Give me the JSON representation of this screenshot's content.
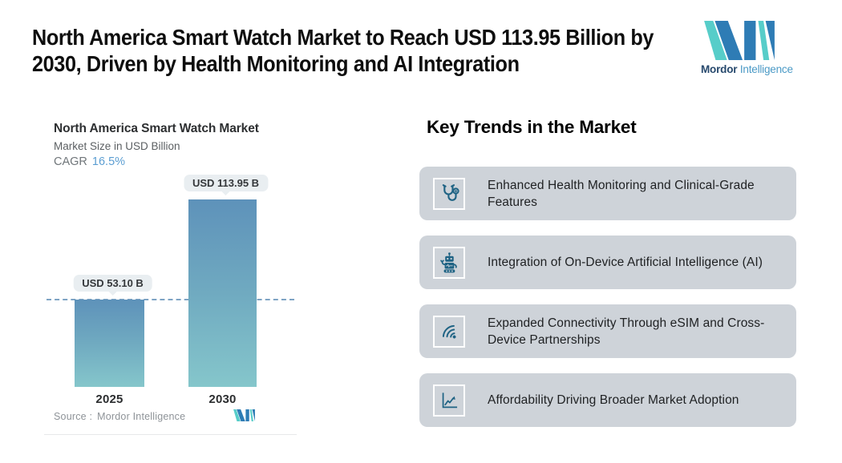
{
  "header": {
    "title_line1": "North America Smart Watch Market to Reach USD 113.95 Billion by",
    "title_line2": "2030, Driven by Health Monitoring and AI Integration"
  },
  "logo": {
    "brand_bold": "Mordor",
    "brand_light": "Intelligence"
  },
  "chart_panel": {
    "title": "North America Smart Watch Market",
    "subtitle": "Market Size in USD Billion",
    "cagr_label": "CAGR",
    "cagr_value": "16.5%",
    "source_label": "Source :",
    "source_value": "Mordor Intelligence"
  },
  "chart_data": {
    "type": "bar",
    "title": "North America Smart Watch Market",
    "ylabel": "Market Size in USD Billion",
    "cagr_percent": 16.5,
    "categories": [
      "2025",
      "2030"
    ],
    "values": [
      53.1,
      113.95
    ],
    "bar_labels": [
      "USD 53.10 B",
      "USD 113.95 B"
    ],
    "reference_line": {
      "value": 53.1,
      "style": "dashed"
    },
    "ylim": [
      0,
      113.95
    ],
    "grid": false,
    "legend": "none",
    "colors": {
      "bar_gradient_top": "#5e92ba",
      "bar_gradient_mid": "#6fa9c0",
      "bar_gradient_bottom": "#85c6cb",
      "dashed_line": "#7ea4c4",
      "label_pill_bg": "#e9eef1",
      "cagr_accent": "#5c9ed2"
    }
  },
  "trends": {
    "heading": "Key Trends in the Market",
    "items": [
      {
        "icon": "stethoscope-icon",
        "label": "Enhanced Health Monitoring and Clinical-Grade Features"
      },
      {
        "icon": "robot-icon",
        "label": "Integration of On-Device Artificial Intelligence (AI)"
      },
      {
        "icon": "wifi-icon",
        "label": "Expanded Connectivity Through eSIM and Cross-Device Partnerships"
      },
      {
        "icon": "chart-line-icon",
        "label": "Affordability Driving Broader Market Adoption"
      }
    ],
    "colors": {
      "card_bg": "#ced3d9",
      "icon_color": "#1f6384"
    }
  },
  "brand_colors": {
    "teal": "#57cdc9",
    "blue": "#2e7cb5",
    "logo_navy": "#27496d",
    "logo_light": "#4b9ac6"
  }
}
